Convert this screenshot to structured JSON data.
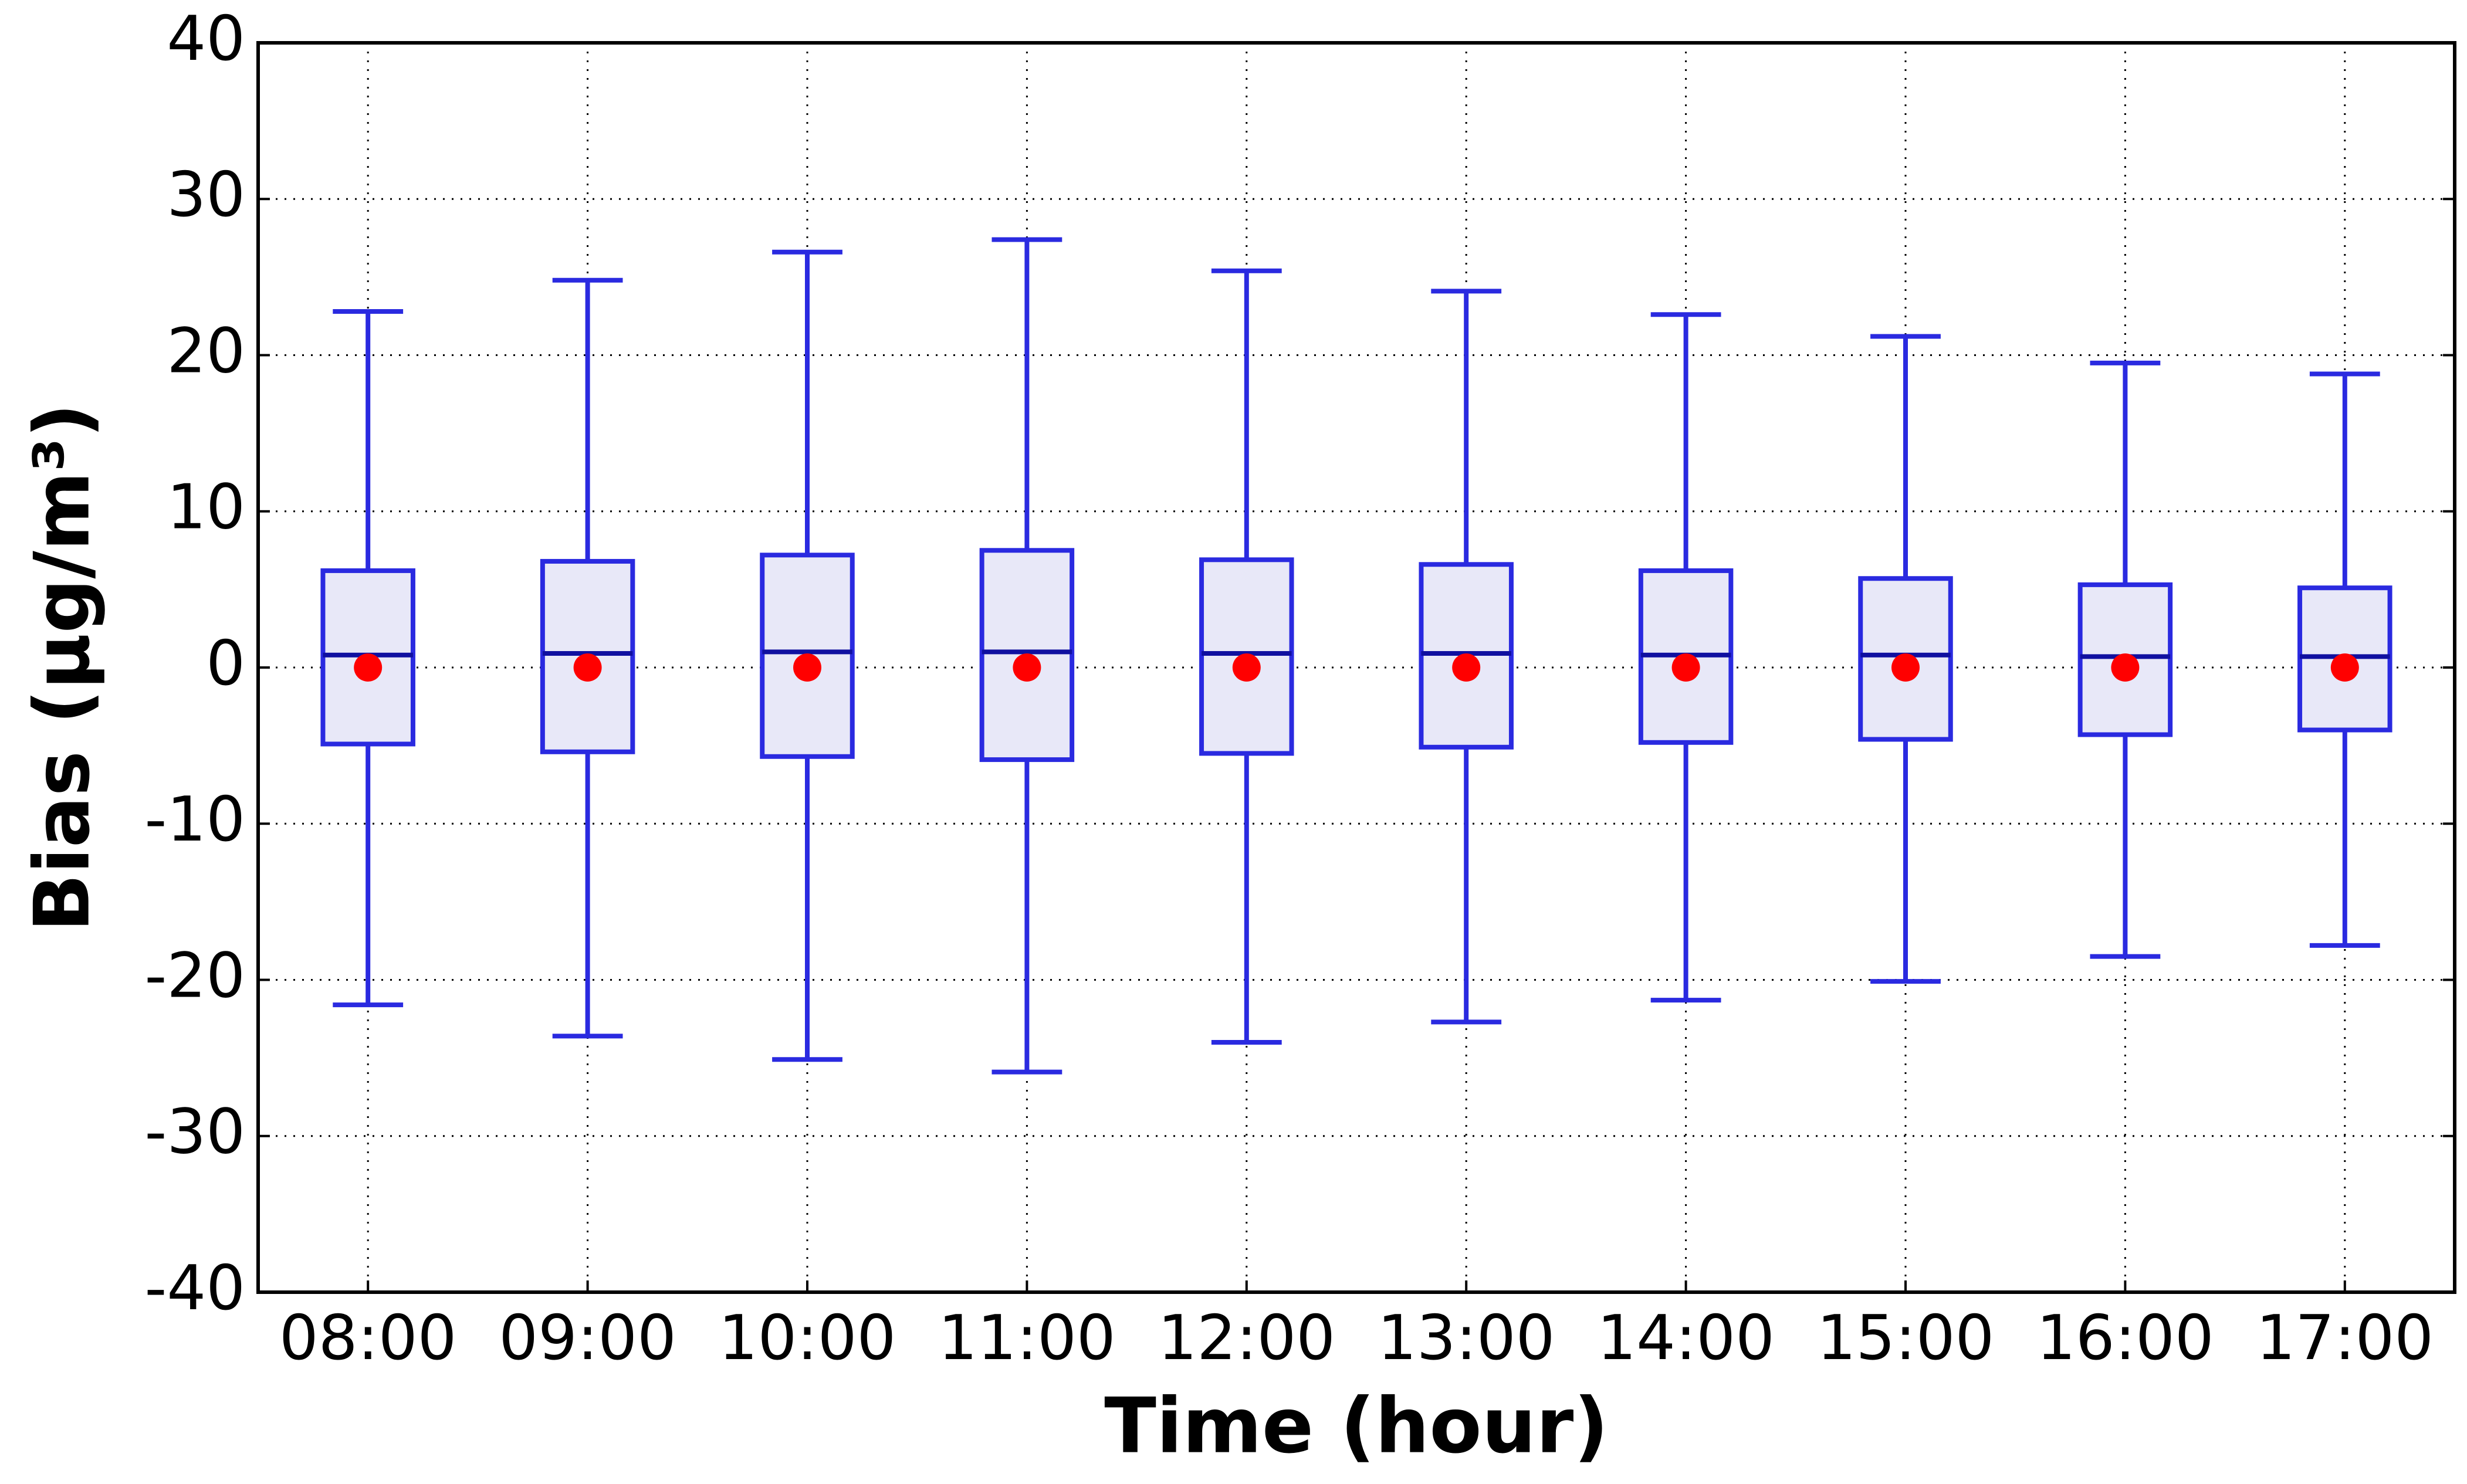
{
  "chart_data": {
    "type": "box",
    "x_label": "Time (hour)",
    "y_label": "Bias (μg/m³)",
    "categories": [
      "08:00",
      "09:00",
      "10:00",
      "11:00",
      "12:00",
      "13:00",
      "14:00",
      "15:00",
      "16:00",
      "17:00"
    ],
    "whisker_high": [
      22.8,
      24.8,
      26.6,
      27.4,
      25.4,
      24.1,
      22.6,
      21.2,
      19.5,
      18.8
    ],
    "q3": [
      6.2,
      6.8,
      7.2,
      7.5,
      6.9,
      6.6,
      6.2,
      5.7,
      5.3,
      5.1
    ],
    "median": [
      0.8,
      0.9,
      1.0,
      1.0,
      0.9,
      0.9,
      0.8,
      0.8,
      0.7,
      0.7
    ],
    "q1": [
      -4.9,
      -5.4,
      -5.7,
      -5.9,
      -5.5,
      -5.1,
      -4.8,
      -4.6,
      -4.3,
      -4.0
    ],
    "whisker_low": [
      -21.6,
      -23.6,
      -25.1,
      -25.9,
      -24.0,
      -22.7,
      -21.3,
      -20.1,
      -18.5,
      -17.8
    ],
    "mean": [
      0,
      0,
      0,
      0,
      0,
      0,
      0,
      0,
      0,
      0
    ],
    "box_color": "#2a2ae0",
    "box_fill": "#e8e8f8",
    "mean_color": "#ff0000",
    "ylim": [
      -40,
      40
    ],
    "yticks": [
      -40,
      -30,
      -20,
      -10,
      0,
      10,
      20,
      30,
      40
    ],
    "grid": true
  }
}
